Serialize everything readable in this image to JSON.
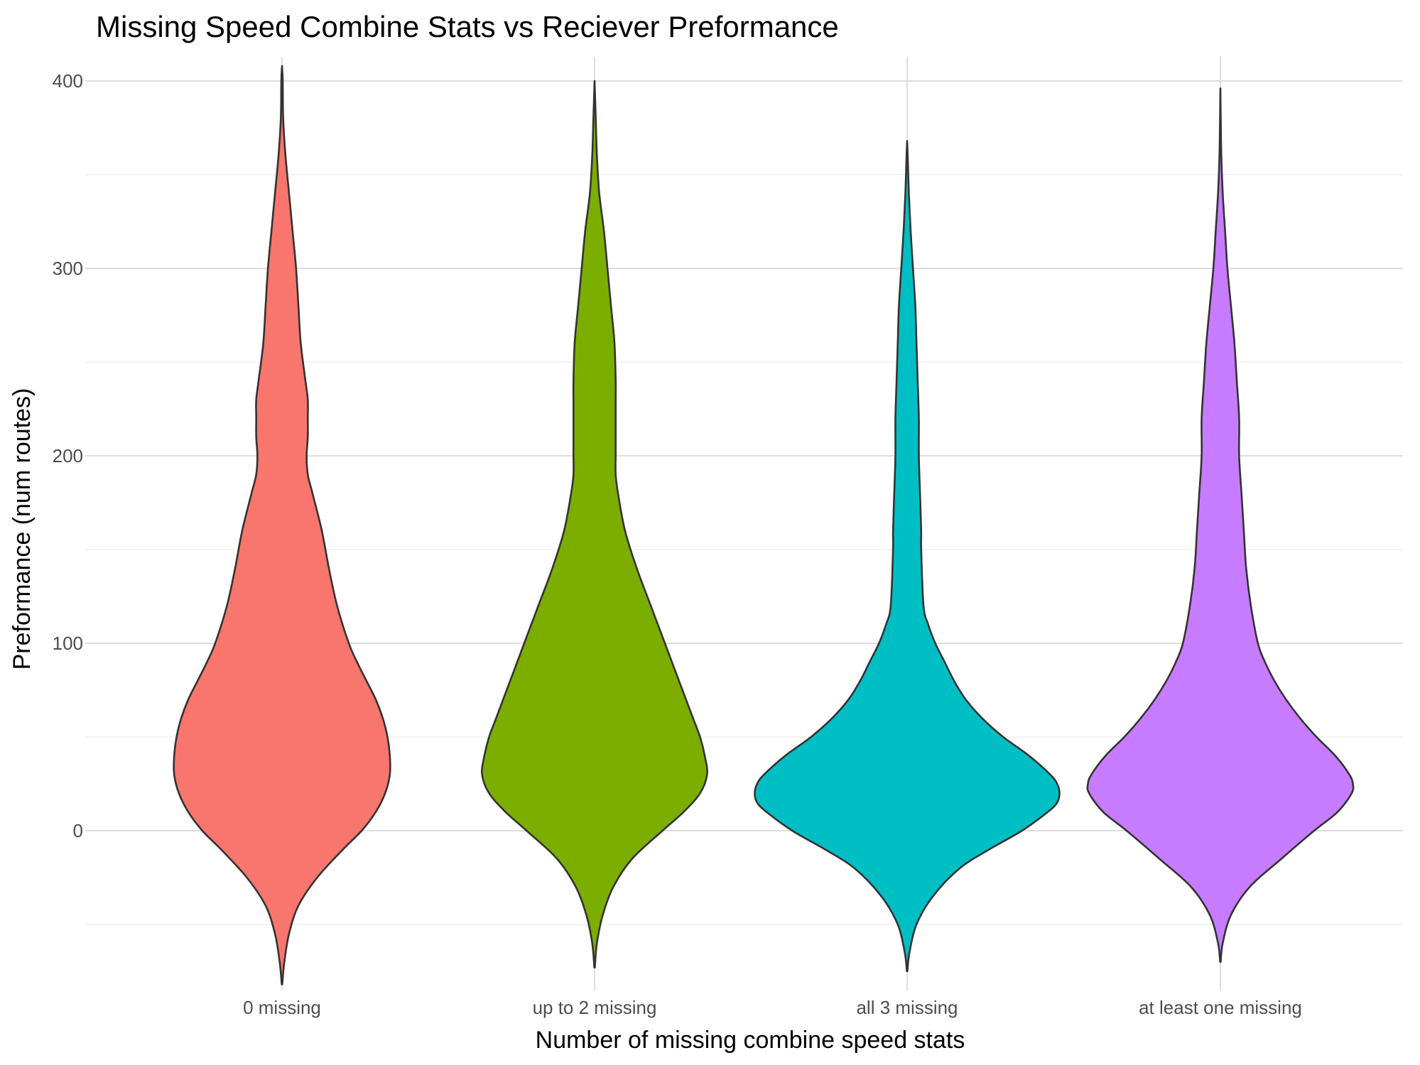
{
  "chart_data": {
    "type": "violin",
    "title": "Missing Speed Combine Stats vs Reciever Preformance",
    "xlabel": "Number of missing combine speed stats",
    "ylabel": "Preformance (num routes)",
    "ylim": [
      -80,
      410
    ],
    "yticks": [
      0,
      100,
      200,
      300,
      400
    ],
    "grid": true,
    "legend": "none",
    "categories": [
      "0 missing",
      "up to 2 missing",
      "all 3 missing",
      "at least one missing"
    ],
    "series": [
      {
        "category": "0 missing",
        "color": "#F8766D",
        "profile": [
          [
            -82,
            0.2
          ],
          [
            -70,
            2
          ],
          [
            -55,
            6
          ],
          [
            -40,
            14
          ],
          [
            -25,
            30
          ],
          [
            -10,
            52
          ],
          [
            0,
            68
          ],
          [
            10,
            80
          ],
          [
            20,
            88
          ],
          [
            30,
            92
          ],
          [
            40,
            92
          ],
          [
            50,
            90
          ],
          [
            60,
            86
          ],
          [
            70,
            80
          ],
          [
            80,
            72
          ],
          [
            90,
            64
          ],
          [
            100,
            57
          ],
          [
            120,
            47
          ],
          [
            140,
            40
          ],
          [
            160,
            34
          ],
          [
            180,
            26
          ],
          [
            190,
            22
          ],
          [
            200,
            21
          ],
          [
            210,
            22
          ],
          [
            220,
            22
          ],
          [
            230,
            22
          ],
          [
            240,
            20
          ],
          [
            260,
            16
          ],
          [
            280,
            14
          ],
          [
            300,
            12
          ],
          [
            320,
            9
          ],
          [
            340,
            6
          ],
          [
            360,
            3
          ],
          [
            380,
            1
          ],
          [
            400,
            0.6
          ],
          [
            408,
            0
          ]
        ]
      },
      {
        "category": "up to 2 missing",
        "color": "#7CAE00",
        "profile": [
          [
            -73,
            0.2
          ],
          [
            -60,
            2
          ],
          [
            -45,
            7
          ],
          [
            -30,
            16
          ],
          [
            -15,
            32
          ],
          [
            0,
            58
          ],
          [
            10,
            76
          ],
          [
            20,
            90
          ],
          [
            30,
            96
          ],
          [
            40,
            94
          ],
          [
            50,
            90
          ],
          [
            60,
            84
          ],
          [
            70,
            78
          ],
          [
            80,
            72
          ],
          [
            90,
            66
          ],
          [
            100,
            60
          ],
          [
            110,
            54
          ],
          [
            120,
            48
          ],
          [
            140,
            36
          ],
          [
            160,
            26
          ],
          [
            180,
            20
          ],
          [
            190,
            18
          ],
          [
            200,
            18
          ],
          [
            210,
            18
          ],
          [
            220,
            18
          ],
          [
            230,
            18
          ],
          [
            240,
            18
          ],
          [
            260,
            17
          ],
          [
            280,
            14
          ],
          [
            300,
            11
          ],
          [
            320,
            8
          ],
          [
            340,
            4
          ],
          [
            360,
            2
          ],
          [
            380,
            1
          ],
          [
            400,
            0
          ]
        ]
      },
      {
        "category": "all 3 missing",
        "color": "#00BFC4",
        "profile": [
          [
            -75,
            0.2
          ],
          [
            -65,
            2
          ],
          [
            -50,
            8
          ],
          [
            -35,
            22
          ],
          [
            -20,
            45
          ],
          [
            -10,
            70
          ],
          [
            0,
            98
          ],
          [
            10,
            120
          ],
          [
            15,
            128
          ],
          [
            20,
            130
          ],
          [
            25,
            128
          ],
          [
            30,
            122
          ],
          [
            40,
            104
          ],
          [
            50,
            82
          ],
          [
            60,
            64
          ],
          [
            70,
            50
          ],
          [
            80,
            40
          ],
          [
            90,
            32
          ],
          [
            100,
            24
          ],
          [
            110,
            18
          ],
          [
            120,
            14
          ],
          [
            150,
            12
          ],
          [
            160,
            12
          ],
          [
            180,
            11
          ],
          [
            200,
            10
          ],
          [
            220,
            10
          ],
          [
            240,
            9
          ],
          [
            260,
            8
          ],
          [
            280,
            7
          ],
          [
            300,
            5
          ],
          [
            320,
            3
          ],
          [
            340,
            1.5
          ],
          [
            360,
            0.5
          ],
          [
            368,
            0
          ]
        ]
      },
      {
        "category": "at least one missing",
        "color": "#C77CFF",
        "profile": [
          [
            -70,
            0.2
          ],
          [
            -60,
            2
          ],
          [
            -45,
            9
          ],
          [
            -30,
            25
          ],
          [
            -15,
            52
          ],
          [
            0,
            80
          ],
          [
            10,
            100
          ],
          [
            20,
            112
          ],
          [
            25,
            113
          ],
          [
            30,
            110
          ],
          [
            40,
            98
          ],
          [
            50,
            82
          ],
          [
            60,
            68
          ],
          [
            70,
            56
          ],
          [
            80,
            46
          ],
          [
            90,
            38
          ],
          [
            100,
            32
          ],
          [
            120,
            26
          ],
          [
            140,
            22
          ],
          [
            160,
            20
          ],
          [
            180,
            18
          ],
          [
            200,
            16
          ],
          [
            220,
            16
          ],
          [
            240,
            14
          ],
          [
            260,
            12
          ],
          [
            280,
            9
          ],
          [
            300,
            6
          ],
          [
            320,
            4
          ],
          [
            340,
            2
          ],
          [
            360,
            0.8
          ],
          [
            380,
            0.3
          ],
          [
            396,
            0
          ]
        ]
      }
    ]
  }
}
